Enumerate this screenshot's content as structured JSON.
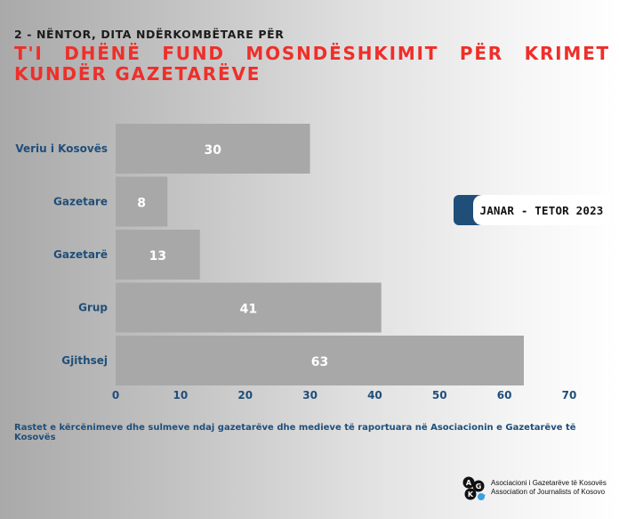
{
  "header": {
    "kicker": "2 - NËNTOR, DITA NDËRKOMBËTARE PËR",
    "title": "T'I DHËNË FUND MOSNDËSHKIMIT PËR KRIMET KUNDËR GAZETARËVE"
  },
  "badge": {
    "text": "JANAR - TETOR 2023",
    "accent_color": "#1f4e79"
  },
  "caption": "Rastet e kërcënimeve dhe sulmeve ndaj gazetarëve dhe medieve të raportuara në Asociacionin e Gazetarëve të Kosovës",
  "logo": {
    "letters": [
      "A",
      "G",
      "K"
    ],
    "line1": "Asociacioni i Gazetarëve të Kosovës",
    "line2": "Association of Journalists of Kosovo"
  },
  "chart_data": {
    "type": "bar",
    "orientation": "horizontal",
    "categories": [
      "Veriu i Kosovës",
      "Gazetare",
      "Gazetarë",
      "Grup",
      "Gjithsej"
    ],
    "values": [
      30,
      8,
      13,
      41,
      63
    ],
    "x_ticks": [
      0,
      10,
      20,
      30,
      40,
      50,
      60,
      70
    ],
    "xlim": [
      0,
      70
    ],
    "title": "",
    "xlabel": "",
    "ylabel": "",
    "grid": false,
    "bar_color": "#a8a8a8",
    "label_color": "#1f4e79",
    "title_color": "#ee2f2a"
  }
}
